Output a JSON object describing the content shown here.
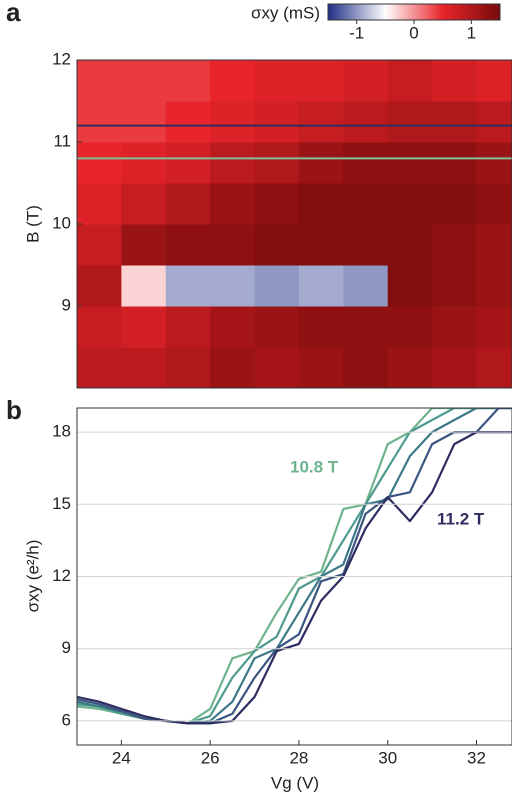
{
  "chart_data": [
    {
      "type": "heatmap",
      "panel": "a",
      "colorbar_label": "σxy   (mS)",
      "clim": [
        -1.5,
        1.5
      ],
      "cticks": [
        -1,
        0,
        1
      ],
      "colorscale": [
        "#1f2e86",
        "#ffffff",
        "#e8252b",
        "#780b0b"
      ],
      "ylabel": "B   (T)",
      "x": [
        23.5,
        24.5,
        25.5,
        26.5,
        27.5,
        28.5,
        29.5,
        30.5,
        31.5,
        32.5
      ],
      "y": [
        8.25,
        8.75,
        9.25,
        9.75,
        10.25,
        10.75,
        11.25,
        11.75
      ],
      "z": [
        [
          0.9,
          0.9,
          1.0,
          1.2,
          1.1,
          1.2,
          1.3,
          1.2,
          1.1,
          1.0
        ],
        [
          0.8,
          0.7,
          0.9,
          1.1,
          1.2,
          1.3,
          1.3,
          1.3,
          1.2,
          1.1
        ],
        [
          1.0,
          -0.3,
          -0.9,
          -0.9,
          -1.0,
          -0.9,
          -1.0,
          1.4,
          1.3,
          1.2
        ],
        [
          0.8,
          1.2,
          1.3,
          1.3,
          1.4,
          1.4,
          1.4,
          1.4,
          1.3,
          1.2
        ],
        [
          0.6,
          0.8,
          1.0,
          1.2,
          1.3,
          1.4,
          1.4,
          1.4,
          1.4,
          1.3
        ],
        [
          0.5,
          0.6,
          0.7,
          0.9,
          1.0,
          1.2,
          1.3,
          1.3,
          1.3,
          1.2
        ],
        [
          0.4,
          0.4,
          0.5,
          0.6,
          0.7,
          0.8,
          0.9,
          1.0,
          1.0,
          0.9
        ],
        [
          0.4,
          0.4,
          0.4,
          0.5,
          0.6,
          0.6,
          0.7,
          0.8,
          0.7,
          0.6
        ]
      ],
      "hlines": [
        {
          "value": 11.2,
          "color": "#2e2d62"
        },
        {
          "value": 10.8,
          "color": "#7fbf9a"
        }
      ],
      "xlim": [
        23,
        32.8
      ],
      "ylim": [
        8,
        12
      ],
      "yticks": [
        9,
        10,
        11,
        12
      ]
    },
    {
      "type": "line",
      "panel": "b",
      "xlabel": "Vg   (V)",
      "ylabel": "σxy   (e²/h)",
      "x": [
        23,
        23.5,
        24,
        24.5,
        25,
        25.5,
        26,
        26.5,
        27,
        27.5,
        28,
        28.5,
        29,
        29.5,
        30,
        30.5,
        31,
        31.5,
        32,
        32.5,
        33
      ],
      "series": [
        {
          "name": "10.8 T",
          "color": "#6fb48f",
          "values": [
            6.6,
            6.5,
            6.3,
            6.1,
            6.0,
            5.9,
            6.5,
            8.6,
            8.9,
            10.5,
            11.9,
            12.2,
            14.8,
            15.0,
            17.5,
            18.0,
            19.0,
            19.0,
            19.0,
            19.0,
            19.0
          ]
        },
        {
          "color": "#4e9a8e",
          "values": [
            6.7,
            6.6,
            6.3,
            6.1,
            6.0,
            5.9,
            6.2,
            7.8,
            8.9,
            9.5,
            11.5,
            12.0,
            13.5,
            15.0,
            16.5,
            18.0,
            18.5,
            19.0,
            19.0,
            19.0,
            19.0
          ]
        },
        {
          "color": "#3d7a88",
          "values": [
            6.8,
            6.6,
            6.4,
            6.1,
            6.0,
            5.9,
            6.0,
            6.8,
            8.6,
            9.0,
            10.5,
            12.0,
            12.5,
            15.0,
            15.2,
            17.0,
            18.0,
            18.5,
            19.0,
            19.0,
            19.0
          ]
        },
        {
          "color": "#3a5580",
          "values": [
            6.9,
            6.7,
            6.4,
            6.1,
            6.0,
            5.9,
            5.9,
            6.3,
            7.8,
            9.0,
            9.6,
            11.8,
            12.1,
            14.6,
            15.3,
            15.5,
            17.5,
            18.0,
            18.0,
            19.0,
            19.0
          ]
        },
        {
          "name": "11.2 T",
          "color": "#2e2d62",
          "values": [
            7.0,
            6.8,
            6.5,
            6.2,
            6.0,
            5.9,
            5.9,
            6.0,
            7.0,
            8.9,
            9.2,
            11.0,
            12.0,
            14.0,
            15.3,
            14.3,
            15.5,
            17.5,
            18.0,
            18.0,
            18.0
          ]
        }
      ],
      "xlim": [
        23,
        32.8
      ],
      "ylim": [
        5,
        19
      ],
      "xticks": [
        24,
        26,
        28,
        30,
        32
      ],
      "yticks": [
        6,
        9,
        12,
        15,
        18
      ],
      "grid": true
    }
  ]
}
